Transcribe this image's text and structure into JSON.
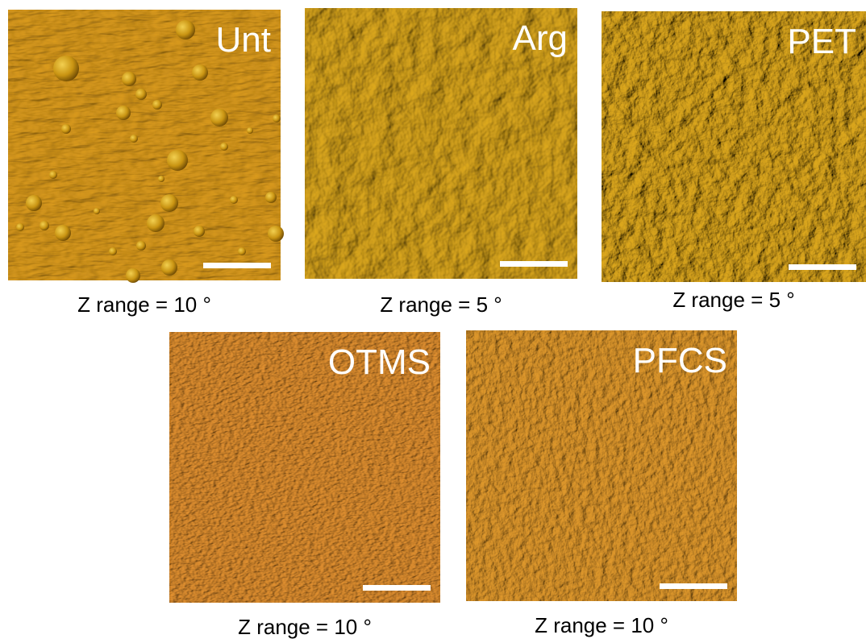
{
  "panels": [
    {
      "label": "Unt",
      "caption": "Z range = 10 °"
    },
    {
      "label": "Arg",
      "caption": "Z range = 5 °"
    },
    {
      "label": "PET",
      "caption": "Z range = 5 °"
    },
    {
      "label": "OTMS",
      "caption": "Z range = 10 °"
    },
    {
      "label": "PFCS",
      "caption": "Z range = 10 °"
    }
  ]
}
